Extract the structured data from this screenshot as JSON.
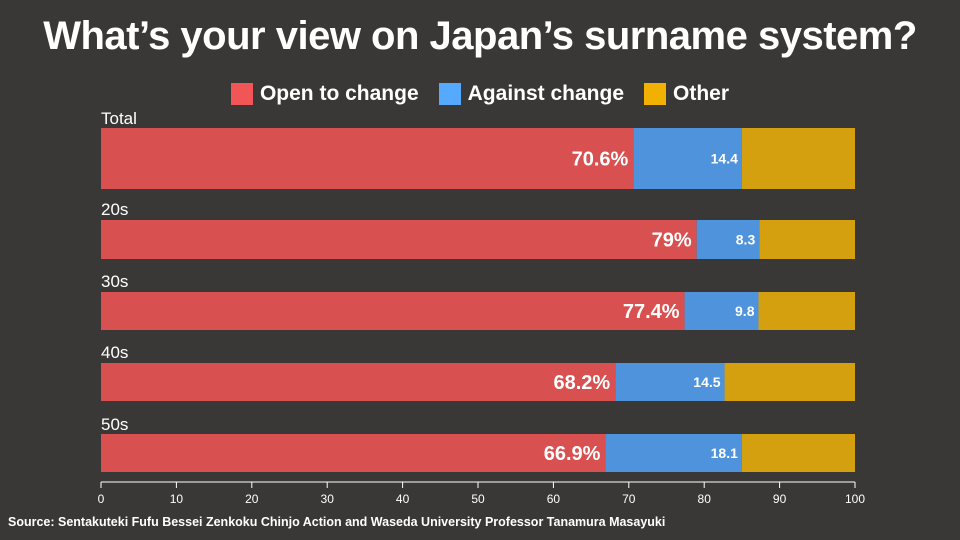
{
  "title": "What’s your view on Japan’s surname system?",
  "source": "Source: Sentakuteki Fufu Bessei Zenkoku Chinjo Action and Waseda University Professor Tanamura Masayuki",
  "colors": {
    "open": "#d95050",
    "against": "#4f93dc",
    "other": "#d4a010",
    "legend_open": "#f25555",
    "legend_against": "#55aaff",
    "legend_other": "#f2b100",
    "background": "#3a3836"
  },
  "chart_data": {
    "type": "bar",
    "orientation": "horizontal",
    "stacked": true,
    "categories": [
      "Total",
      "20s",
      "30s",
      "40s",
      "50s"
    ],
    "series": [
      {
        "name": "Open to change",
        "values": [
          70.6,
          79,
          77.4,
          68.2,
          66.9
        ],
        "labels": [
          "70.6%",
          "79%",
          "77.4%",
          "68.2%",
          "66.9%"
        ]
      },
      {
        "name": "Against change",
        "values": [
          14.4,
          8.3,
          9.8,
          14.5,
          18.1
        ],
        "labels": [
          "14.4",
          "8.3",
          "9.8",
          "14.5",
          "18.1"
        ]
      },
      {
        "name": "Other",
        "values": [
          15.0,
          12.7,
          12.8,
          17.3,
          15.0
        ],
        "labels": []
      }
    ],
    "xlim": [
      0,
      100
    ],
    "xticks": [
      "0",
      "10",
      "20",
      "30",
      "40",
      "50",
      "60",
      "70",
      "80",
      "90",
      "100"
    ],
    "legend_position": "top-center",
    "grid": false
  }
}
